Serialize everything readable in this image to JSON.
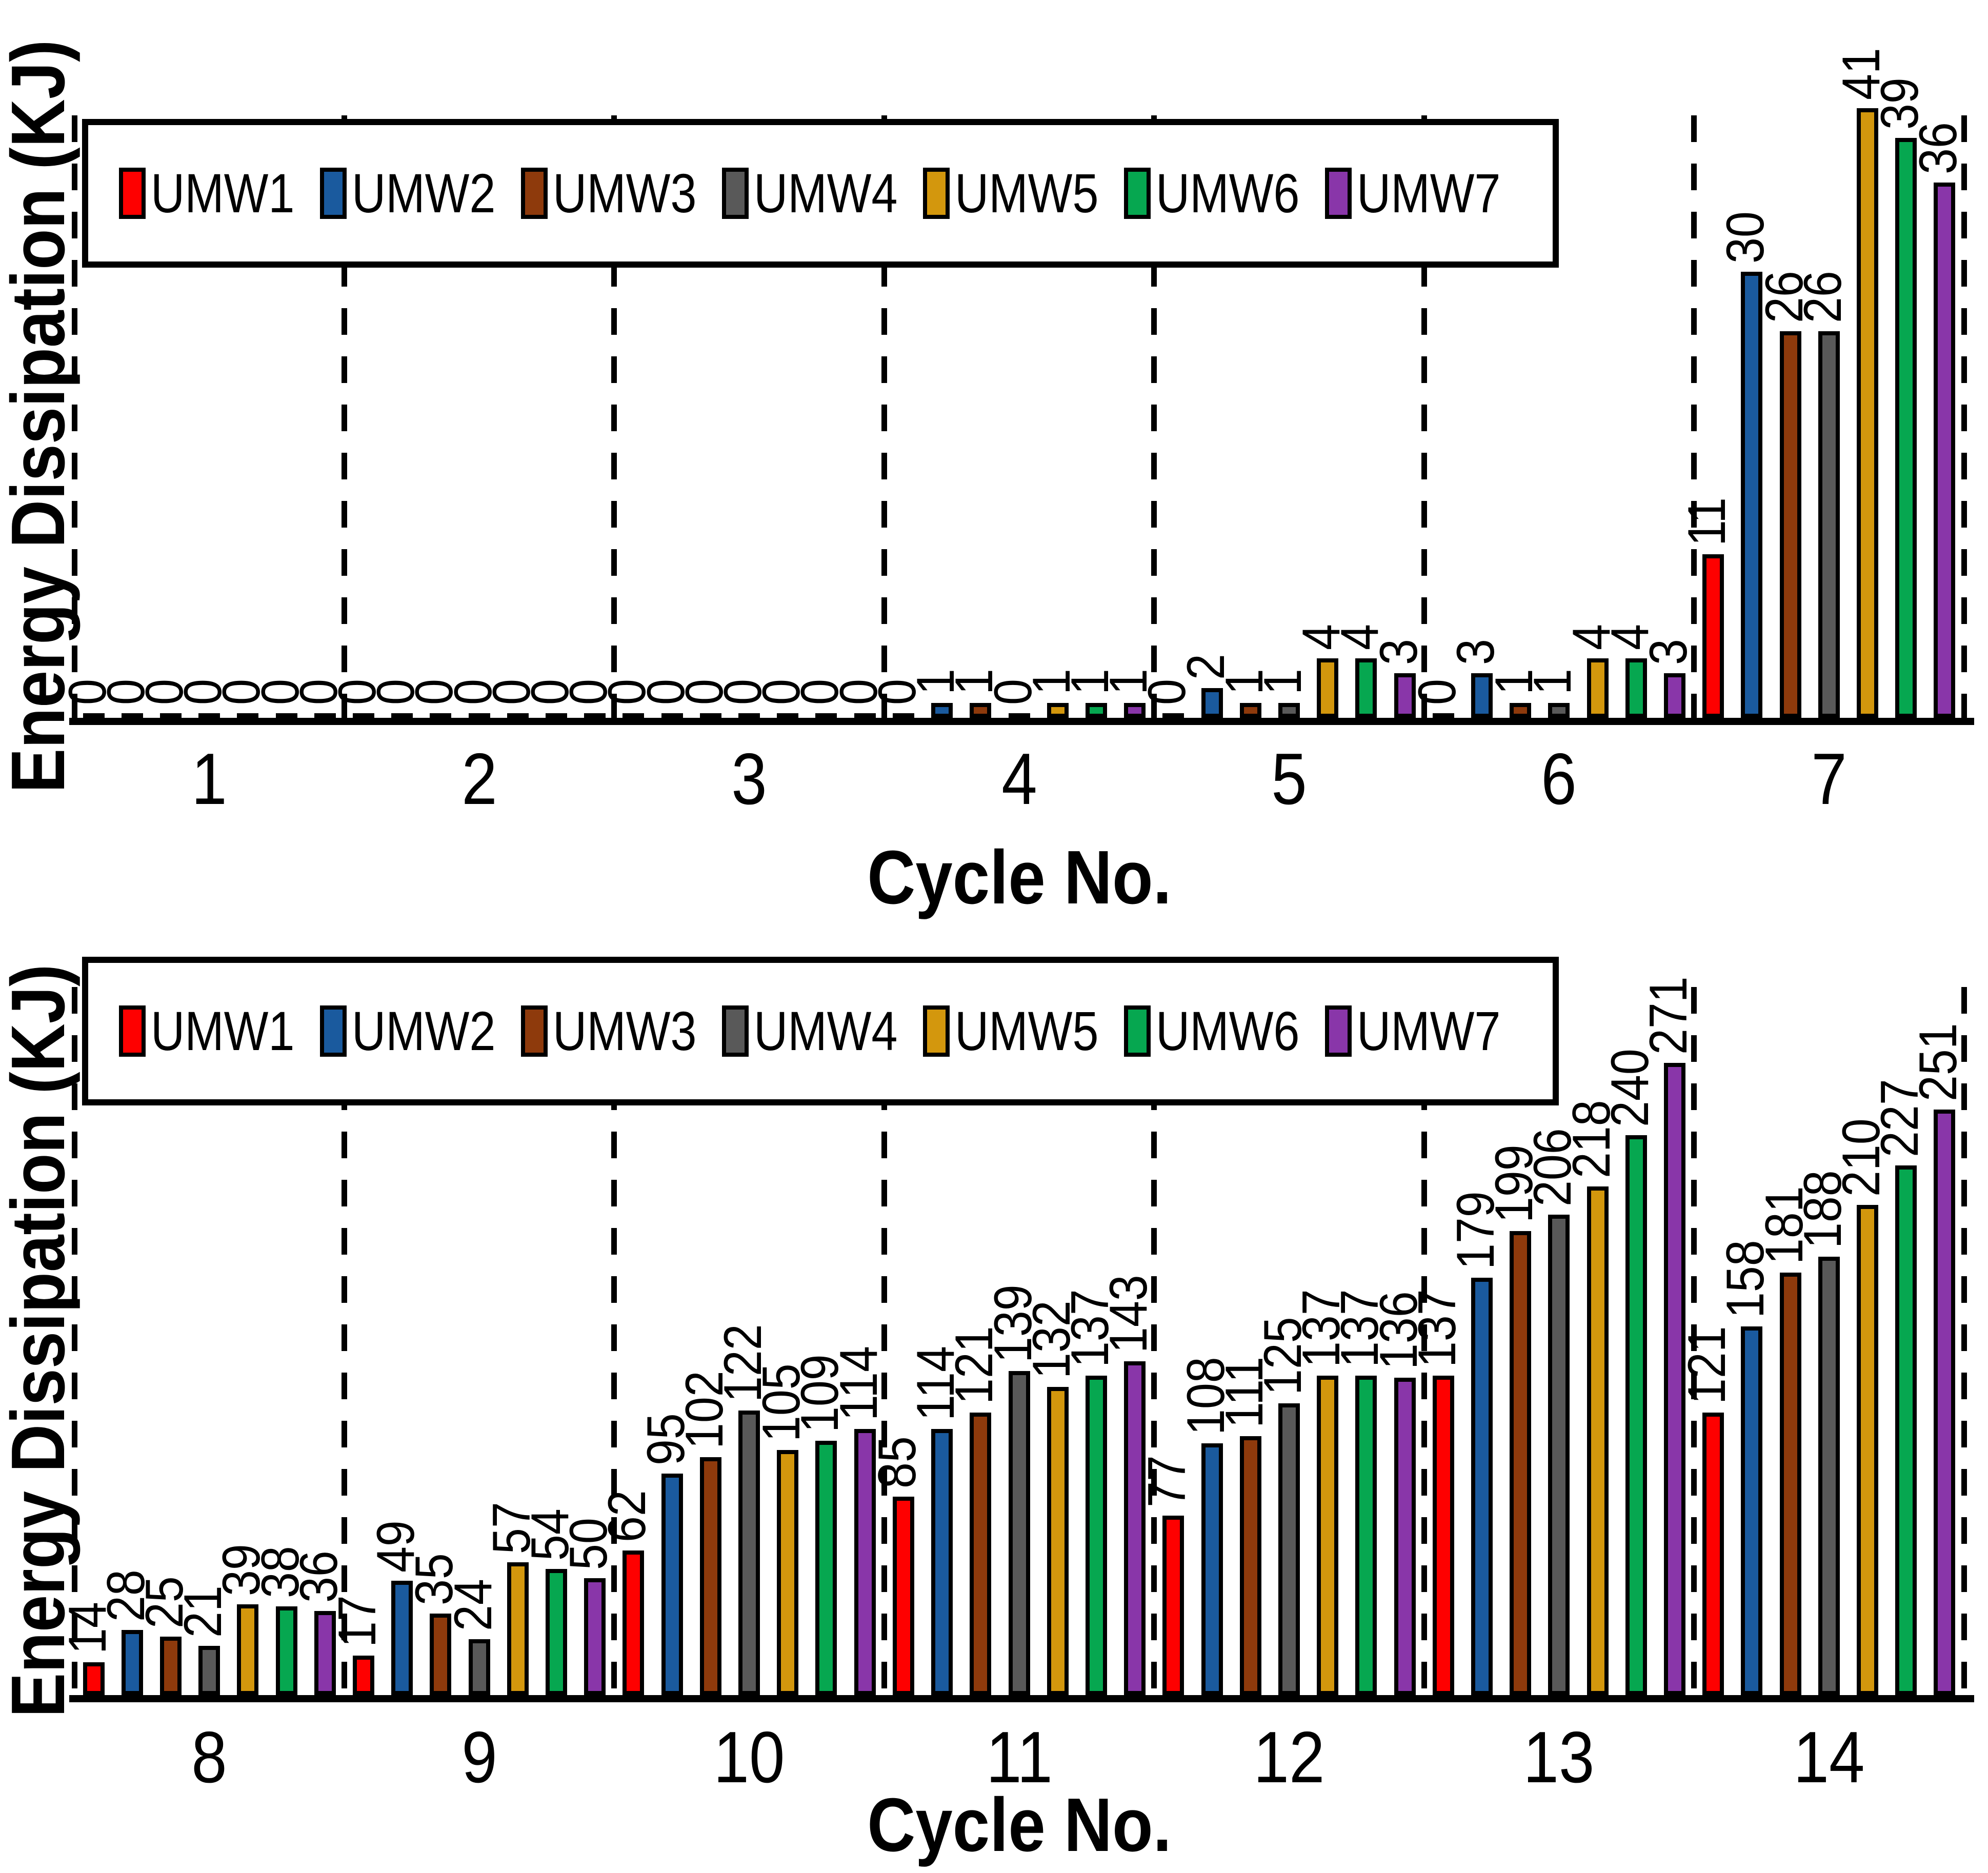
{
  "figure": {
    "background": "#ffffff",
    "description": "Two stacked grouped bar charts of energy dissipation per cycle for seven specimens UMW1-UMW7, with rotated value labels above every bar and dashed vertical separators between cycle groups"
  },
  "legend": {
    "items": [
      {
        "label": "UMW1",
        "color": "#fe0000"
      },
      {
        "label": "UMW2",
        "color": "#1a5a9e"
      },
      {
        "label": "UMW3",
        "color": "#8e3a0c"
      },
      {
        "label": "UMW4",
        "color": "#595959"
      },
      {
        "label": "UMW5",
        "color": "#d3970d"
      },
      {
        "label": "UMW6",
        "color": "#06a750"
      },
      {
        "label": "UMW7",
        "color": "#8936a9"
      }
    ]
  },
  "chart_data": [
    {
      "type": "bar",
      "panel": "top",
      "title": "",
      "xlabel": "Cycle No.",
      "ylabel": "Energy Dissipation (KJ)",
      "categories": [
        "1",
        "2",
        "3",
        "4",
        "5",
        "6",
        "7"
      ],
      "series": [
        {
          "name": "UMW1",
          "color": "#fe0000",
          "values": [
            0,
            0,
            0,
            0,
            0,
            0,
            11
          ]
        },
        {
          "name": "UMW2",
          "color": "#1a5a9e",
          "values": [
            0,
            0,
            0,
            1,
            2,
            3,
            30
          ]
        },
        {
          "name": "UMW3",
          "color": "#8e3a0c",
          "values": [
            0,
            0,
            0,
            1,
            1,
            1,
            26
          ]
        },
        {
          "name": "UMW4",
          "color": "#595959",
          "values": [
            0,
            0,
            0,
            0,
            1,
            1,
            26
          ]
        },
        {
          "name": "UMW5",
          "color": "#d3970d",
          "values": [
            0,
            0,
            0,
            1,
            4,
            4,
            41
          ]
        },
        {
          "name": "UMW6",
          "color": "#06a750",
          "values": [
            0,
            0,
            0,
            1,
            4,
            4,
            39
          ]
        },
        {
          "name": "UMW7",
          "color": "#8936a9",
          "values": [
            0,
            0,
            0,
            1,
            3,
            3,
            36
          ]
        }
      ],
      "ylim": [
        0,
        41
      ],
      "yaxis_tick_labels_visible": false,
      "bar_value_labels": "rotated 90 degrees above each bar",
      "legend_position": "inside top, horizontal row",
      "gridlines": "vertical dashed separators between cycle groups and at both plot edges"
    },
    {
      "type": "bar",
      "panel": "bottom",
      "title": "",
      "xlabel": "Cycle No.",
      "ylabel": "Energy Dissipation (KJ)",
      "categories": [
        "8",
        "9",
        "10",
        "11",
        "12",
        "13",
        "14"
      ],
      "series": [
        {
          "name": "UMW1",
          "color": "#fe0000",
          "values": [
            14,
            17,
            62,
            85,
            77,
            137,
            121
          ]
        },
        {
          "name": "UMW2",
          "color": "#1a5a9e",
          "values": [
            28,
            49,
            95,
            114,
            108,
            179,
            158
          ]
        },
        {
          "name": "UMW3",
          "color": "#8e3a0c",
          "values": [
            25,
            35,
            102,
            121,
            111,
            199,
            181
          ]
        },
        {
          "name": "UMW4",
          "color": "#595959",
          "values": [
            21,
            24,
            122,
            139,
            125,
            206,
            188
          ]
        },
        {
          "name": "UMW5",
          "color": "#d3970d",
          "values": [
            39,
            57,
            105,
            132,
            137,
            218,
            210
          ]
        },
        {
          "name": "UMW6",
          "color": "#06a750",
          "values": [
            38,
            54,
            109,
            137,
            137,
            240,
            227
          ]
        },
        {
          "name": "UMW7",
          "color": "#8936a9",
          "values": [
            36,
            50,
            114,
            143,
            136,
            271,
            251
          ]
        }
      ],
      "ylim": [
        0,
        271
      ],
      "yaxis_tick_labels_visible": false,
      "bar_value_labels": "rotated 90 degrees above each bar",
      "legend_position": "inside top, horizontal row",
      "gridlines": "vertical dashed separators between cycle groups and at both plot edges"
    }
  ]
}
